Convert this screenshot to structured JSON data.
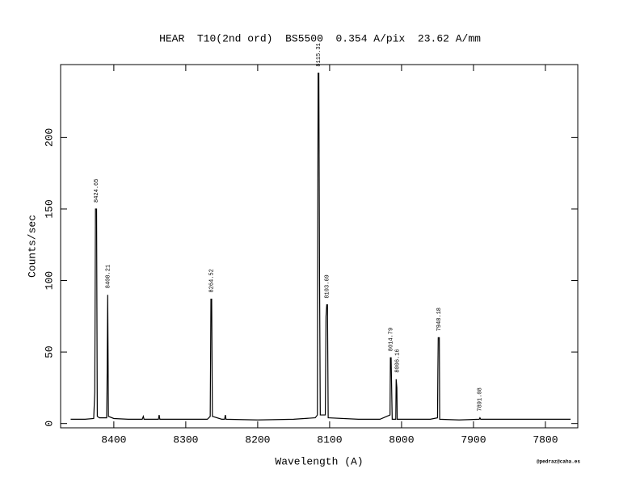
{
  "chart_data": {
    "type": "line",
    "title": "HEAR  T10(2nd ord)  BS5500  0.354 A/pix  23.62 A/mm",
    "xlabel": "Wavelength (A)",
    "ylabel": "Counts/sec",
    "footer": "@pedraz@caha.es",
    "xlim": [
      8474,
      7755
    ],
    "ylim": [
      -3,
      251
    ],
    "xticks": [
      8400,
      8300,
      8200,
      8100,
      8000,
      7900,
      7800
    ],
    "yticks": [
      0,
      50,
      100,
      150,
      200
    ],
    "grid": false,
    "series": [
      {
        "color": "#000000",
        "x": [
          8460,
          8440,
          8428,
          8426.5,
          8425.5,
          8424,
          8423,
          8420,
          8410,
          8409.5,
          8408.5,
          8407.5,
          8400,
          8380,
          8360.5,
          8359,
          8358,
          8338,
          8337,
          8336,
          8300,
          8270,
          8266,
          8265,
          8264,
          8263,
          8250,
          8246,
          8245,
          8244,
          8200,
          8150,
          8120,
          8117,
          8116,
          8115,
          8114,
          8113,
          8106,
          8105,
          8104,
          8103,
          8102,
          8060,
          8030,
          8016,
          8015.5,
          8014.5,
          8013,
          8008,
          8007.5,
          8006.5,
          8006,
          7960,
          7950,
          7949.5,
          7949,
          7947.5,
          7947,
          7920,
          7892,
          7891,
          7890,
          7800,
          7765
        ],
        "values": [
          3,
          3,
          3.5,
          22,
          150,
          150,
          5,
          4,
          4,
          22,
          90,
          5,
          3.5,
          3,
          3,
          5,
          3,
          3,
          6,
          3,
          3,
          3,
          5,
          87,
          87,
          5,
          3,
          3,
          6,
          3,
          2.5,
          3,
          4,
          6,
          245,
          245,
          102,
          6,
          6,
          75,
          83,
          83,
          4,
          3,
          3,
          6,
          46,
          46,
          3,
          3,
          31,
          25,
          3,
          3,
          4,
          36,
          60,
          60,
          3,
          2.5,
          3,
          4,
          3,
          3,
          3
        ]
      }
    ],
    "annotations": [
      {
        "text": "8424.65",
        "x": 8424.65
      },
      {
        "text": "8408.21",
        "x": 8408.21
      },
      {
        "text": "8264.52",
        "x": 8264.52
      },
      {
        "text": "8115.31",
        "x": 8115.31
      },
      {
        "text": "8103.69",
        "x": 8103.69
      },
      {
        "text": "8014.79",
        "x": 8014.79
      },
      {
        "text": "8006.16",
        "x": 8006.16
      },
      {
        "text": "7948.18",
        "x": 7948.18
      },
      {
        "text": "7891.08",
        "x": 7891.08
      }
    ]
  }
}
